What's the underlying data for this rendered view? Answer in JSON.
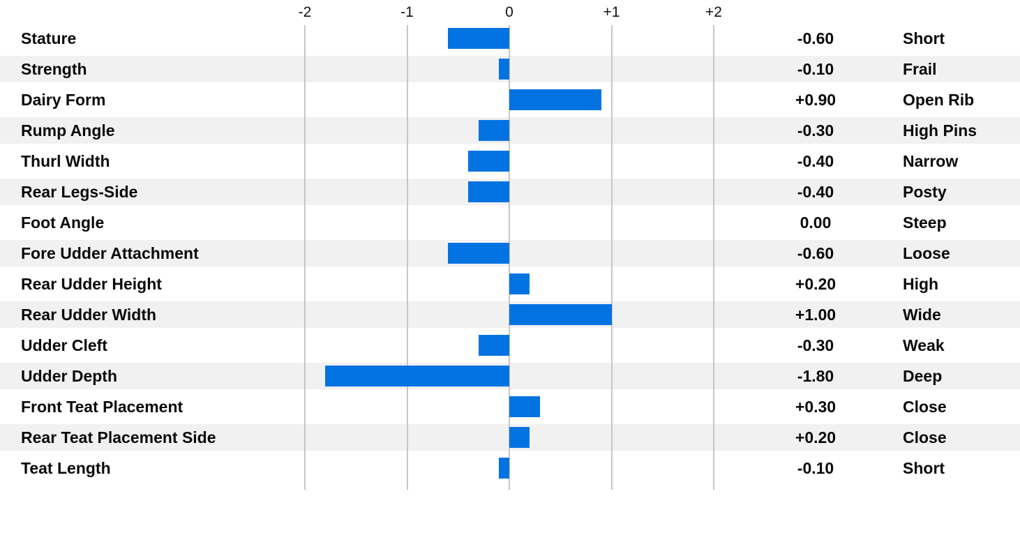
{
  "chart_data": {
    "type": "bar",
    "orientation": "horizontal",
    "title": "",
    "xlabel": "",
    "ylabel": "",
    "xlim": [
      -2.5,
      2.5
    ],
    "grid": "vertical-ticks-only",
    "legend": "none",
    "axis_ticks": [
      {
        "label": "-2",
        "value": -2
      },
      {
        "label": "-1",
        "value": -1
      },
      {
        "label": "0",
        "value": 0
      },
      {
        "label": "+1",
        "value": 1
      },
      {
        "label": "+2",
        "value": 2
      }
    ],
    "rows": [
      {
        "trait": "Stature",
        "value": -0.6,
        "value_label": "-0.60",
        "descriptor": "Short"
      },
      {
        "trait": "Strength",
        "value": -0.1,
        "value_label": "-0.10",
        "descriptor": "Frail"
      },
      {
        "trait": "Dairy Form",
        "value": 0.9,
        "value_label": "+0.90",
        "descriptor": "Open Rib"
      },
      {
        "trait": "Rump Angle",
        "value": -0.3,
        "value_label": "-0.30",
        "descriptor": "High Pins"
      },
      {
        "trait": "Thurl Width",
        "value": -0.4,
        "value_label": "-0.40",
        "descriptor": "Narrow"
      },
      {
        "trait": "Rear Legs-Side",
        "value": -0.4,
        "value_label": "-0.40",
        "descriptor": "Posty"
      },
      {
        "trait": "Foot Angle",
        "value": 0.0,
        "value_label": "0.00",
        "descriptor": "Steep"
      },
      {
        "trait": "Fore Udder Attachment",
        "value": -0.6,
        "value_label": "-0.60",
        "descriptor": "Loose"
      },
      {
        "trait": "Rear Udder Height",
        "value": 0.2,
        "value_label": "+0.20",
        "descriptor": "High"
      },
      {
        "trait": "Rear Udder Width",
        "value": 1.0,
        "value_label": "+1.00",
        "descriptor": "Wide"
      },
      {
        "trait": "Udder Cleft",
        "value": -0.3,
        "value_label": "-0.30",
        "descriptor": "Weak"
      },
      {
        "trait": "Udder Depth",
        "value": -1.8,
        "value_label": "-1.80",
        "descriptor": "Deep"
      },
      {
        "trait": "Front Teat Placement",
        "value": 0.3,
        "value_label": "+0.30",
        "descriptor": "Close"
      },
      {
        "trait": "Rear Teat Placement Side",
        "value": 0.2,
        "value_label": "+0.20",
        "descriptor": "Close"
      },
      {
        "trait": "Teat Length",
        "value": -0.1,
        "value_label": "-0.10",
        "descriptor": "Short"
      }
    ],
    "colors": {
      "bar": "#0473e2",
      "stripe": "#f1f1f2",
      "gridline": "#c6c6c6",
      "text": "#0a0a0a"
    }
  }
}
